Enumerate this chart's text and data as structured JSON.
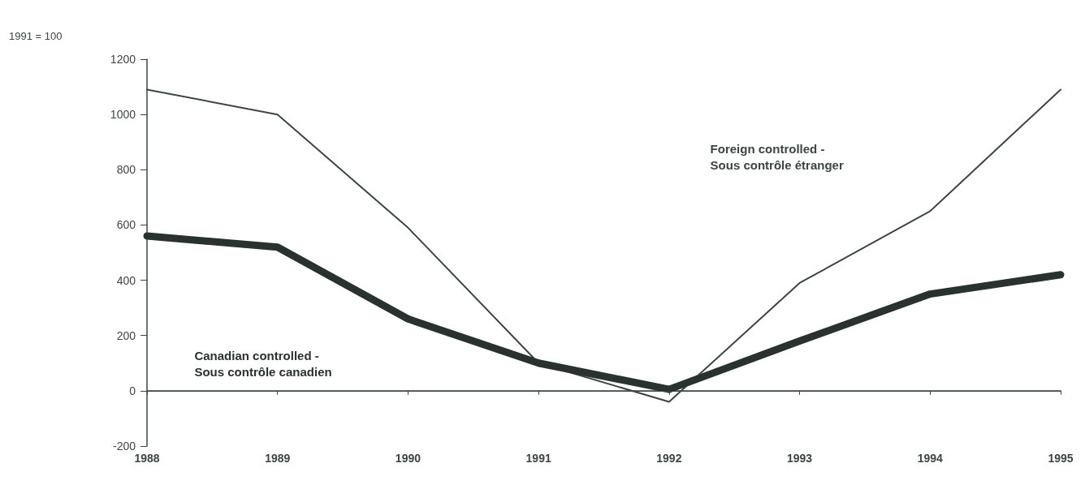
{
  "chart_data": {
    "type": "line",
    "ylabel": "1991 = 100",
    "categories": [
      "1988",
      "1989",
      "1990",
      "1991",
      "1992",
      "1993",
      "1994",
      "1995"
    ],
    "series": [
      {
        "name": "Foreign controlled -\nSous contrôle étranger",
        "color": "#3c4642",
        "values": [
          1090,
          1000,
          590,
          100,
          -40,
          390,
          650,
          1090
        ]
      },
      {
        "name": "Canadian controlled -\nSous contrôle canadien",
        "color": "#2a322f",
        "values": [
          560,
          520,
          260,
          100,
          5,
          180,
          350,
          420
        ]
      }
    ],
    "ylim": [
      -200,
      1200
    ],
    "yticks": [
      -200,
      0,
      200,
      400,
      600,
      800,
      1000,
      1200
    ],
    "ref_lines": [
      {
        "axis": "y",
        "value": 0,
        "color": "#3c4642",
        "line_style": "solid"
      }
    ],
    "grid": false,
    "legend": false,
    "marker": "none",
    "line_style": "solid"
  }
}
